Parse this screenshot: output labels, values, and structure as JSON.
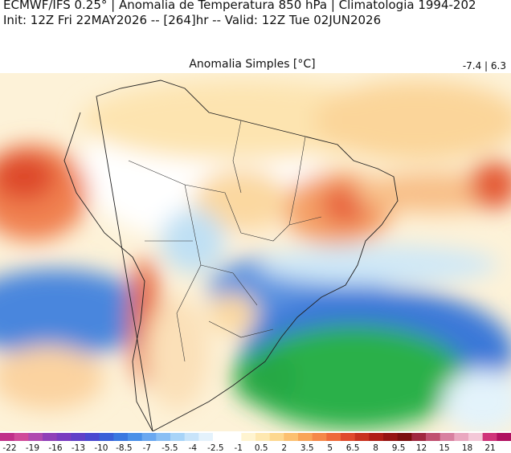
{
  "header": {
    "title": "ECMWF/IFS 0.25° | Anomalia de Temperatura 850 hPa | Climatologia 1994-202",
    "subtitle": "Init: 12Z Fri 22MAY2026 -- [264]hr -- Valid: 12Z Tue 02JUN2026"
  },
  "map": {
    "title": "Anomalia Simples [°C]",
    "range_label": "-7.4 | 6.3"
  },
  "colorbar": {
    "labels": [
      "-22",
      "-19",
      "-16",
      "-13",
      "-10",
      "-8.5",
      "-7",
      "-5.5",
      "-4",
      "-2.5",
      "-1",
      "0.5",
      "2",
      "3.5",
      "5",
      "6.5",
      "8",
      "9.5",
      "12",
      "15",
      "18",
      "21"
    ]
  }
}
